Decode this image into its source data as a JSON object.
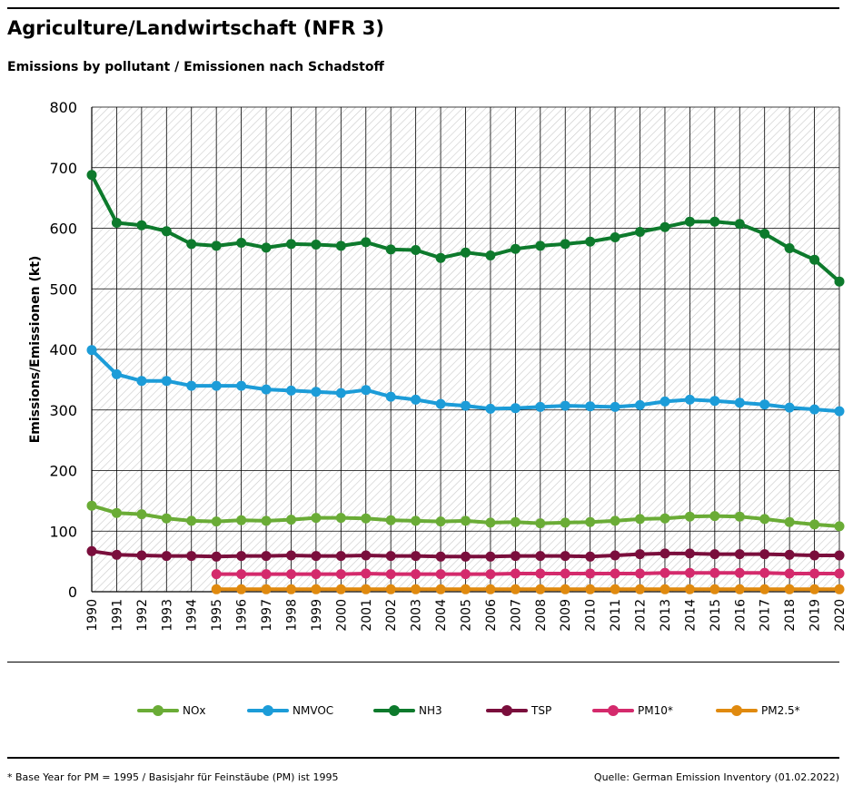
{
  "header": {
    "title": "Agriculture/Landwirtschaft (NFR 3)",
    "subtitle": "Emissions by pollutant / Emissionen nach Schadstoff"
  },
  "footer": {
    "footnote": "* Base Year for PM = 1995 / Basisjahr für Feinstäube (PM) ist 1995",
    "source": "Quelle: German Emission Inventory (01.02.2022)"
  },
  "chart_data": {
    "type": "line",
    "title": "Agriculture/Landwirtschaft (NFR 3)",
    "subtitle": "Emissions by pollutant / Emissionen nach Schadstoff",
    "xlabel": "",
    "ylabel": "Emissions/Emissionen (kt)",
    "ylim": [
      0,
      800
    ],
    "yticks": [
      0,
      100,
      200,
      300,
      400,
      500,
      600,
      700,
      800
    ],
    "grid": true,
    "legend_position": "bottom",
    "x": [
      "1990",
      "1991",
      "1992",
      "1993",
      "1994",
      "1995",
      "1996",
      "1997",
      "1998",
      "1999",
      "2000",
      "2001",
      "2002",
      "2003",
      "2004",
      "2005",
      "2006",
      "2007",
      "2008",
      "2009",
      "2010",
      "2011",
      "2012",
      "2013",
      "2014",
      "2015",
      "2016",
      "2017",
      "2018",
      "2019",
      "2020"
    ],
    "series": [
      {
        "name": "NOx",
        "color": "#6aac36",
        "values": [
          142,
          130,
          128,
          121,
          117,
          116,
          118,
          117,
          119,
          122,
          122,
          121,
          118,
          117,
          116,
          117,
          114,
          115,
          113,
          114,
          115,
          117,
          120,
          121,
          124,
          125,
          124,
          120,
          115,
          111,
          108
        ]
      },
      {
        "name": "NMVOC",
        "color": "#1c9cd8",
        "values": [
          399,
          359,
          348,
          348,
          340,
          340,
          340,
          334,
          332,
          330,
          328,
          333,
          322,
          317,
          310,
          307,
          302,
          303,
          305,
          307,
          306,
          305,
          308,
          314,
          317,
          315,
          312,
          309,
          304,
          301,
          298
        ]
      },
      {
        "name": "NH3",
        "color": "#0d7a2c",
        "values": [
          688,
          609,
          605,
          595,
          574,
          571,
          576,
          568,
          574,
          573,
          571,
          577,
          565,
          564,
          551,
          560,
          555,
          566,
          571,
          574,
          578,
          585,
          594,
          602,
          611,
          611,
          607,
          591,
          567,
          548,
          512
        ]
      },
      {
        "name": "TSP",
        "color": "#7a0e3c",
        "values": [
          67,
          61,
          60,
          59,
          59,
          58,
          59,
          59,
          60,
          59,
          59,
          60,
          59,
          59,
          58,
          58,
          58,
          59,
          59,
          59,
          58,
          60,
          62,
          63,
          63,
          62,
          62,
          62,
          61,
          60,
          60
        ]
      },
      {
        "name": "PM10*",
        "color": "#d42a6c",
        "values": [
          null,
          null,
          null,
          null,
          null,
          29,
          29,
          29,
          29,
          29,
          29,
          30,
          29,
          29,
          29,
          29,
          29,
          30,
          30,
          30,
          30,
          30,
          30,
          31,
          31,
          31,
          31,
          31,
          30,
          30,
          30
        ]
      },
      {
        "name": "PM2.5*",
        "color": "#e08a0f",
        "values": [
          null,
          null,
          null,
          null,
          null,
          4,
          4,
          4,
          4,
          4,
          4,
          4,
          4,
          4,
          4,
          4,
          4,
          4,
          4,
          4,
          4,
          4,
          4,
          4,
          4,
          4,
          4,
          4,
          4,
          4,
          4
        ]
      }
    ]
  }
}
